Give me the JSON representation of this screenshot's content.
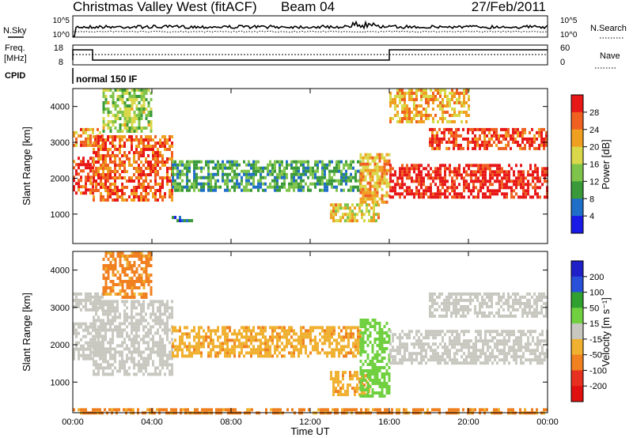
{
  "header": {
    "title": "Christmas Valley West (fitACF)",
    "beam": "Beam 04",
    "date": "27/Feb/2011"
  },
  "top_panels": {
    "nsky_label": "N.Sky",
    "nsearch_label": "N.Search",
    "noise_ticks": [
      "10^5",
      "10^0"
    ],
    "freq_label_line1": "Freq.",
    "freq_label_line2": "[MHz]",
    "freq_ticks": [
      "18",
      "8"
    ],
    "nave_label": "Nave",
    "nave_ticks": [
      "60",
      "0"
    ],
    "cpid_label": "CPID",
    "cpid_value": "normal 150 IF"
  },
  "colors": {
    "power": [
      "#1a1ae6",
      "#1f6ec8",
      "#3a9a3a",
      "#7fc44a",
      "#d8d84a",
      "#f0a020",
      "#f06020",
      "#e81818"
    ],
    "velocity": [
      "#2020c8",
      "#2850d8",
      "#30a030",
      "#70d040",
      "#c8c8c0",
      "#f0b030",
      "#f08020",
      "#e83020",
      "#e01010"
    ]
  },
  "power_scale": {
    "title": "Power [dB]",
    "ticks": [
      "28",
      "24",
      "20",
      "16",
      "12",
      "8",
      "4"
    ]
  },
  "velocity_scale": {
    "title": "Velocity [m s⁻¹]",
    "ticks": [
      "200",
      "100",
      "50",
      "15",
      "-15",
      "-50",
      "-100",
      "-200"
    ]
  },
  "chart_data": [
    {
      "type": "heatmap",
      "name": "power",
      "ylabel": "Slant Range [km]",
      "xlim_hours": [
        0,
        24
      ],
      "ylim_km": [
        180,
        4500
      ],
      "y_ticks": [
        "4000",
        "3000",
        "2000",
        "1000"
      ],
      "x_ticks": [
        "00:00",
        "04:00",
        "08:00",
        "12:00",
        "16:00",
        "20:00",
        "00:00"
      ],
      "colorbar": "Power [dB]",
      "colorbar_range": [
        0,
        30
      ],
      "regions": [
        {
          "t": [
            0,
            1
          ],
          "r": [
            1600,
            2600
          ],
          "value": 26
        },
        {
          "t": [
            0,
            1.5
          ],
          "r": [
            2900,
            3400
          ],
          "value": 22
        },
        {
          "t": [
            1,
            5
          ],
          "r": [
            1400,
            3200
          ],
          "value": 24
        },
        {
          "t": [
            1.5,
            4
          ],
          "r": [
            3300,
            4500
          ],
          "value": 14
        },
        {
          "t": [
            5,
            14.5
          ],
          "r": [
            1700,
            2500
          ],
          "value": 10
        },
        {
          "t": [
            5,
            6
          ],
          "r": [
            850,
            950
          ],
          "value": 6
        },
        {
          "t": [
            13,
            15.5
          ],
          "r": [
            800,
            1300
          ],
          "value": 18
        },
        {
          "t": [
            14.5,
            16
          ],
          "r": [
            1300,
            2700
          ],
          "value": 20
        },
        {
          "t": [
            16,
            24
          ],
          "r": [
            1500,
            2400
          ],
          "value": 28
        },
        {
          "t": [
            18,
            24
          ],
          "r": [
            2800,
            3400
          ],
          "value": 26
        },
        {
          "t": [
            16,
            20
          ],
          "r": [
            3600,
            4500
          ],
          "value": 20
        }
      ]
    },
    {
      "type": "heatmap",
      "name": "velocity",
      "ylabel": "Slant Range [km]",
      "xlabel": "Time UT",
      "xlim_hours": [
        0,
        24
      ],
      "ylim_km": [
        180,
        4500
      ],
      "y_ticks": [
        "4000",
        "3000",
        "2000",
        "1000"
      ],
      "x_ticks": [
        "00:00",
        "04:00",
        "08:00",
        "12:00",
        "16:00",
        "20:00",
        "00:00"
      ],
      "colorbar": "Velocity [m s⁻¹]",
      "colorbar_range": [
        -250,
        250
      ],
      "regions": [
        {
          "t": [
            0,
            1.5
          ],
          "r": [
            1600,
            2600
          ],
          "value": 0
        },
        {
          "t": [
            0,
            1.5
          ],
          "r": [
            2900,
            3400
          ],
          "value": 0
        },
        {
          "t": [
            1,
            5
          ],
          "r": [
            1200,
            3200
          ],
          "value": 0
        },
        {
          "t": [
            1.5,
            4
          ],
          "r": [
            3300,
            4500
          ],
          "value": -60
        },
        {
          "t": [
            5,
            14.5
          ],
          "r": [
            1700,
            2500
          ],
          "value": -40
        },
        {
          "t": [
            13,
            15
          ],
          "r": [
            700,
            1300
          ],
          "value": -40
        },
        {
          "t": [
            14.5,
            16
          ],
          "r": [
            600,
            2700
          ],
          "value": 30
        },
        {
          "t": [
            16,
            24
          ],
          "r": [
            1500,
            2400
          ],
          "value": 0
        },
        {
          "t": [
            18,
            24
          ],
          "r": [
            2800,
            3400
          ],
          "value": 0
        },
        {
          "t": [
            0,
            24
          ],
          "r": [
            180,
            300
          ],
          "value": -60
        }
      ]
    }
  ]
}
